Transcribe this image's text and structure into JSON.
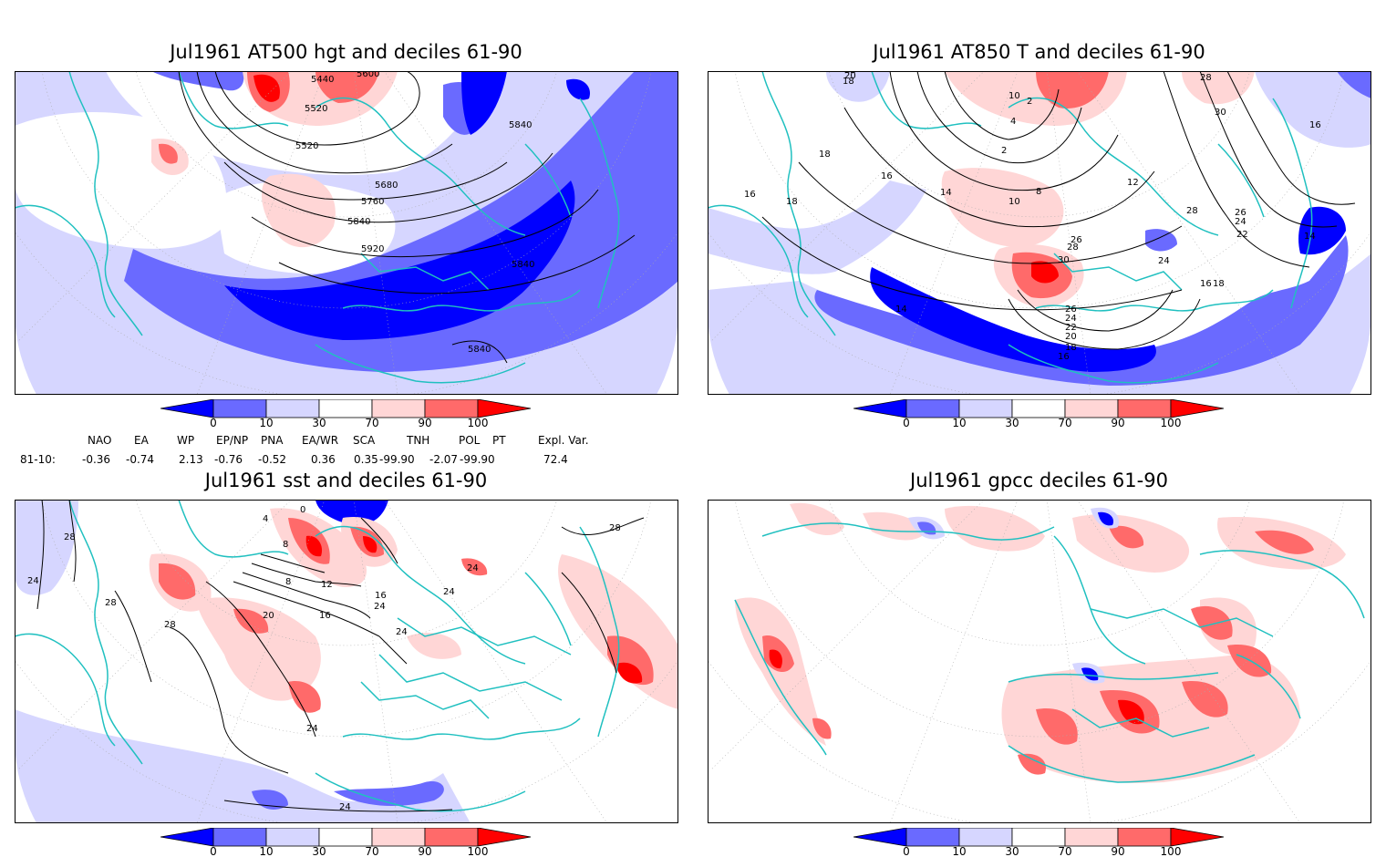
{
  "colors": {
    "dark_blue": "#0000ff",
    "mid_blue": "#6a6aff",
    "light_blue": "#d6d6ff",
    "white": "#ffffff",
    "light_red": "#ffd6d6",
    "mid_red": "#ff6a6a",
    "dark_red": "#ff0000",
    "coast": "#20c0c0",
    "contour": "#000000"
  },
  "colorbar_ticks": [
    "0",
    "10",
    "30",
    "70",
    "90",
    "100"
  ],
  "panels": [
    {
      "id": "z500",
      "title": "Jul1961 AT500 hgt and deciles 61-90",
      "contour_labels": [
        "5440",
        "5600",
        "5520",
        "5520",
        "5840",
        "5680",
        "5760",
        "5840",
        "5920",
        "5840",
        "5840"
      ]
    },
    {
      "id": "t850",
      "title": "Jul1961 AT850 T and deciles 61-90",
      "contour_labels": [
        "18",
        "20",
        "22",
        "28",
        "10",
        "2",
        "4",
        "2",
        "30",
        "16",
        "18",
        "16",
        "16",
        "18",
        "14",
        "10",
        "8",
        "12",
        "28",
        "26",
        "24",
        "22",
        "14",
        "30",
        "28",
        "26",
        "24",
        "16",
        "18",
        "14",
        "26",
        "24",
        "22",
        "20",
        "18",
        "16"
      ]
    },
    {
      "id": "sst",
      "title": "Jul1961 sst and deciles 61-90",
      "contour_labels": [
        "28",
        "24",
        "28",
        "28",
        "20",
        "16",
        "12",
        "8",
        "24",
        "24",
        "24",
        "24",
        "28",
        "24",
        "24",
        "16",
        "0",
        "4",
        "8"
      ]
    },
    {
      "id": "gpcc",
      "title": "Jul1961 gpcc deciles 61-90",
      "contour_labels": []
    }
  ],
  "indices": {
    "headers": [
      "NAO",
      "EA",
      "WP",
      "EP/NP",
      "PNA",
      "EA/WR",
      "SCA",
      "TNH",
      "POL",
      "PT",
      "Expl. Var."
    ],
    "row_label": "81-10:",
    "values": [
      "-0.36",
      "-0.74",
      "2.13",
      "-0.76",
      "-0.52",
      "0.36",
      "0.35",
      "-99.90",
      "-2.07",
      "-99.90",
      "72.4"
    ]
  }
}
